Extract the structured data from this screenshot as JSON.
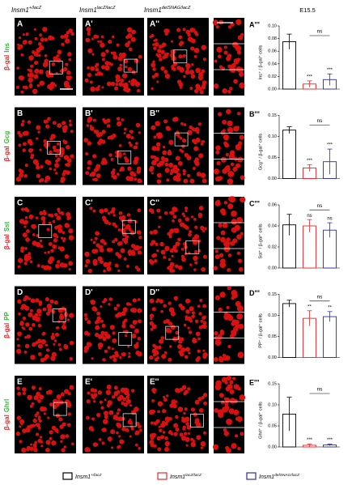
{
  "columns": [
    {
      "base": "Insm1",
      "sup": "+/lacZ"
    },
    {
      "base": "Insm1",
      "sup": "lacZ/lacZ"
    },
    {
      "base": "Insm1",
      "sup": "delSNAG/lacZ"
    }
  ],
  "stage": "E15.5",
  "rows": [
    {
      "stain": "β-gal",
      "marker": "Ins",
      "panels": [
        "A",
        "A'",
        "A''"
      ]
    },
    {
      "stain": "β-gal",
      "marker": "Gcg",
      "panels": [
        "B",
        "B'",
        "B''"
      ]
    },
    {
      "stain": "β-gal",
      "marker": "Sst",
      "panels": [
        "C",
        "C'",
        "C''"
      ]
    },
    {
      "stain": "β-gal",
      "marker": "PP",
      "panels": [
        "D",
        "D'",
        "D''"
      ]
    },
    {
      "stain": "β-gal",
      "marker": "Ghrl",
      "panels": [
        "E",
        "E'",
        "E''"
      ]
    }
  ],
  "legend": [
    {
      "base": "Insm1",
      "sup": "+/lacZ",
      "color": "#000000"
    },
    {
      "base": "Insm1",
      "sup": "lacZ/lacZ",
      "color": "#e8262a"
    },
    {
      "base": "Insm1",
      "sup": "delSNAG/lacZ",
      "color": "#2b2ba8"
    }
  ],
  "chart_data": [
    {
      "type": "bar",
      "title": "A'''",
      "ylabel": "Ins⁺ / β-gal⁺ cells",
      "values": [
        0.075,
        0.008,
        0.015
      ],
      "errors": [
        0.012,
        0.005,
        0.009
      ],
      "colors": [
        "#000000",
        "#e8262a",
        "#2b2ba8"
      ],
      "ylim": [
        0,
        0.1
      ],
      "yticks": [
        {
          "value": 0,
          "label": "0.00"
        },
        0.02,
        0.04,
        0.06,
        0.08,
        {
          "value": 0.1,
          "label": "0.10"
        }
      ],
      "annotations": [
        "***",
        "***",
        "ns"
      ]
    },
    {
      "type": "bar",
      "title": "B'''",
      "ylabel": "Gcg⁺ / β-gal⁺ cells",
      "values": [
        0.115,
        0.025,
        0.04
      ],
      "errors": [
        0.008,
        0.008,
        0.03
      ],
      "colors": [
        "#000000",
        "#e8262a",
        "#2b2ba8"
      ],
      "ylim": [
        0,
        0.15
      ],
      "yticks": [
        {
          "value": 0,
          "label": "0.00"
        },
        0.05,
        {
          "value": 0.1,
          "label": "0.10"
        },
        0.15
      ],
      "annotations": [
        "***",
        "***",
        "ns"
      ]
    },
    {
      "type": "bar",
      "title": "C'''",
      "ylabel": "Sst⁺ / β-gal⁺ cells",
      "values": [
        0.041,
        0.04,
        0.036
      ],
      "errors": [
        0.01,
        0.006,
        0.007
      ],
      "colors": [
        "#000000",
        "#e8262a",
        "#2b2ba8"
      ],
      "ylim": [
        0,
        0.06
      ],
      "yticks": [
        {
          "value": 0,
          "label": "0.00"
        },
        0.02,
        0.04,
        0.06
      ],
      "annotations": [
        "ns",
        "ns",
        "ns"
      ]
    },
    {
      "type": "bar",
      "title": "D'''",
      "ylabel": "PP⁺ / β-gal⁺ cells",
      "values": [
        0.128,
        0.093,
        0.097
      ],
      "errors": [
        0.008,
        0.018,
        0.012
      ],
      "colors": [
        "#000000",
        "#e8262a",
        "#2b2ba8"
      ],
      "ylim": [
        0,
        0.15
      ],
      "yticks": [
        {
          "value": 0,
          "label": "0.00"
        },
        0.05,
        {
          "value": 0.1,
          "label": "0.10"
        },
        0.15
      ],
      "annotations": [
        "**",
        "**",
        "ns"
      ]
    },
    {
      "type": "bar",
      "title": "E'''",
      "ylabel": "Ghrl⁺ / β-gal⁺ cells",
      "values": [
        0.078,
        0.004,
        0.005
      ],
      "errors": [
        0.04,
        0.003,
        0.002
      ],
      "colors": [
        "#000000",
        "#e8262a",
        "#2b2ba8"
      ],
      "ylim": [
        0,
        0.15
      ],
      "yticks": [
        {
          "value": 0,
          "label": "0.00"
        },
        0.05,
        {
          "value": 0.1,
          "label": "0.10"
        },
        0.15
      ],
      "annotations": [
        "***",
        "***",
        "ns"
      ]
    }
  ]
}
